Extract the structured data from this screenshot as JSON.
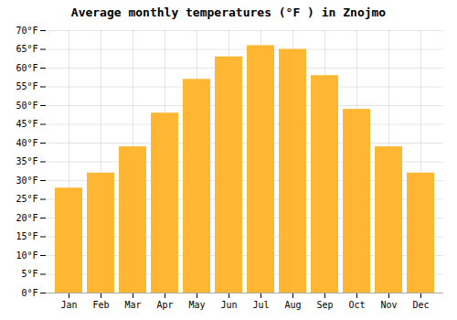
{
  "chart_data": {
    "type": "bar",
    "title": "Average monthly temperatures (°F ) in Znojmo",
    "categories": [
      "Jan",
      "Feb",
      "Mar",
      "Apr",
      "May",
      "Jun",
      "Jul",
      "Aug",
      "Sep",
      "Oct",
      "Nov",
      "Dec"
    ],
    "values": [
      28,
      32,
      39,
      48,
      57,
      63,
      66,
      65,
      58,
      49,
      39,
      32
    ],
    "color": "#FFB733",
    "ylim": [
      0,
      70
    ],
    "yticks": [
      {
        "value": 0,
        "label": "0°F"
      },
      {
        "value": 5,
        "label": "5°F"
      },
      {
        "value": 10,
        "label": "10°F"
      },
      {
        "value": 15,
        "label": "15°F"
      },
      {
        "value": 20,
        "label": "20°F"
      },
      {
        "value": 25,
        "label": "25°F"
      },
      {
        "value": 30,
        "label": "30°F"
      },
      {
        "value": 35,
        "label": "35°F"
      },
      {
        "value": 40,
        "label": "40°F"
      },
      {
        "value": 45,
        "label": "45°F"
      },
      {
        "value": 50,
        "label": "50°F"
      },
      {
        "value": 55,
        "label": "55°F"
      },
      {
        "value": 60,
        "label": "60°F"
      },
      {
        "value": 65,
        "label": "65°F"
      },
      {
        "value": 70,
        "label": "70°F"
      }
    ],
    "grid": true
  }
}
